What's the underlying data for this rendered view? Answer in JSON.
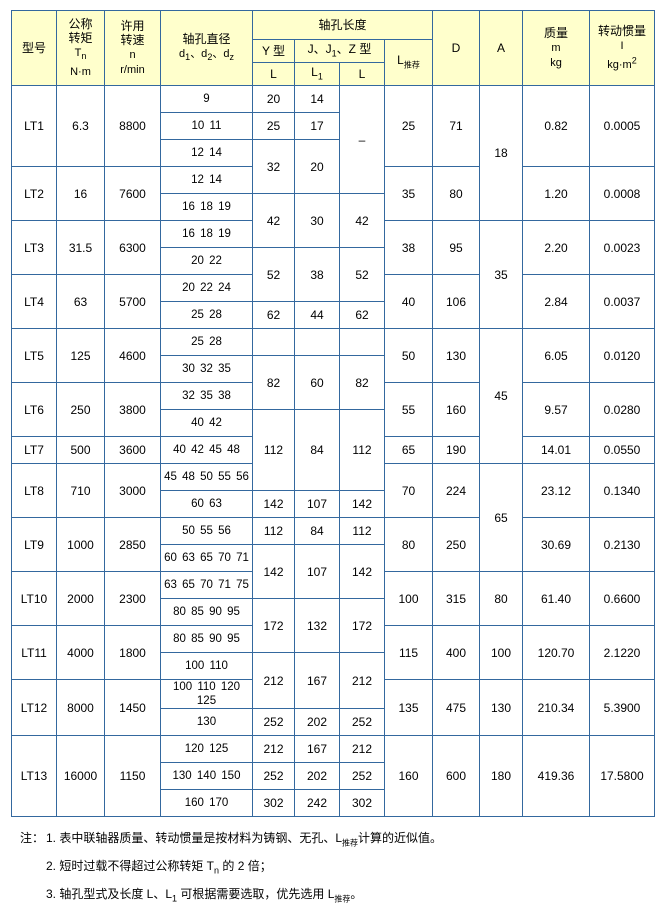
{
  "page": {
    "header_bg": "#ffffcc",
    "grid_color": "#34689e",
    "body_bg": "#ffffff",
    "text_color": "#000000"
  },
  "hdr": {
    "model": "型号",
    "tq1": "公称",
    "tq2": "转矩",
    "tq_sym": "T",
    "tq_sub": "n",
    "tq_unit": "N·m",
    "sp1": "许用",
    "sp2": "转速",
    "sp_sym": "n",
    "sp_unit": "r/min",
    "bore_title": "轴孔直径",
    "bore_d1": "d",
    "bore_s1": "1",
    "bore_d2": "、d",
    "bore_s2": "2",
    "bore_d3": "、d",
    "bore_s3": "z",
    "len_group": "轴孔长度",
    "y_type": "Y 型",
    "jz_a": "J、J",
    "jz_sub": "1",
    "jz_b": "、Z 型",
    "lrec_sym": "L",
    "lrec_sub": "推荐",
    "col_L": "L",
    "col_L1a": "L",
    "col_L1sub": "1",
    "col_L2": "L",
    "D": "D",
    "A": "A",
    "mass1": "质量",
    "mass_sym": "m",
    "mass_unit": "kg",
    "in1": "转动惯量",
    "in_sym": "I",
    "in_unit": "kg·m",
    "in_sup": "2"
  },
  "table": {
    "body": [
      [
        {
          "k": "model",
          "v": "LT1",
          "r": 3
        },
        {
          "k": "tn",
          "v": "6.3",
          "r": 3
        },
        {
          "k": "n",
          "v": "8800",
          "r": 3
        },
        {
          "k": "d",
          "v": "9"
        },
        {
          "k": "ly",
          "v": "20"
        },
        {
          "k": "l1",
          "v": "14"
        },
        {
          "k": "lz",
          "v": "–",
          "r": 4
        },
        {
          "k": "lrec",
          "v": "25",
          "r": 3
        },
        {
          "k": "D",
          "v": "71",
          "r": 3
        },
        {
          "k": "A",
          "v": "18",
          "r": 5
        },
        {
          "k": "m",
          "v": "0.82",
          "r": 3
        },
        {
          "k": "I",
          "v": "0.0005",
          "r": 3
        }
      ],
      [
        {
          "k": "d",
          "v": "10 11"
        },
        {
          "k": "ly",
          "v": "25"
        },
        {
          "k": "l1",
          "v": "17"
        }
      ],
      [
        {
          "k": "d",
          "v": "12 14"
        },
        {
          "k": "ly",
          "v": "32",
          "r": 2
        },
        {
          "k": "l1",
          "v": "20",
          "r": 2
        }
      ],
      [
        {
          "k": "model",
          "v": "LT2",
          "r": 2
        },
        {
          "k": "tn",
          "v": "16",
          "r": 2
        },
        {
          "k": "n",
          "v": "7600",
          "r": 2
        },
        {
          "k": "d",
          "v": "12 14"
        },
        {
          "k": "lrec",
          "v": "35",
          "r": 2
        },
        {
          "k": "D",
          "v": "80",
          "r": 2
        },
        {
          "k": "m",
          "v": "1.20",
          "r": 2
        },
        {
          "k": "I",
          "v": "0.0008",
          "r": 2
        }
      ],
      [
        {
          "k": "d",
          "v": "16 18 19"
        },
        {
          "k": "ly",
          "v": "42",
          "r": 2
        },
        {
          "k": "l1",
          "v": "30",
          "r": 2
        },
        {
          "k": "lz",
          "v": "42",
          "r": 2
        }
      ],
      [
        {
          "k": "model",
          "v": "LT3",
          "r": 2
        },
        {
          "k": "tn",
          "v": "31.5",
          "r": 2
        },
        {
          "k": "n",
          "v": "6300",
          "r": 2
        },
        {
          "k": "d",
          "v": "16 18 19"
        },
        {
          "k": "lrec",
          "v": "38",
          "r": 2
        },
        {
          "k": "D",
          "v": "95",
          "r": 2
        },
        {
          "k": "A",
          "v": "35",
          "r": 4
        },
        {
          "k": "m",
          "v": "2.20",
          "r": 2
        },
        {
          "k": "I",
          "v": "0.0023",
          "r": 2
        }
      ],
      [
        {
          "k": "d",
          "v": "20 22"
        },
        {
          "k": "ly",
          "v": "52",
          "r": 2
        },
        {
          "k": "l1",
          "v": "38",
          "r": 2
        },
        {
          "k": "lz",
          "v": "52",
          "r": 2
        }
      ],
      [
        {
          "k": "model",
          "v": "LT4",
          "r": 2
        },
        {
          "k": "tn",
          "v": "63",
          "r": 2
        },
        {
          "k": "n",
          "v": "5700",
          "r": 2
        },
        {
          "k": "d",
          "v": "20 22 24"
        },
        {
          "k": "lrec",
          "v": "40",
          "r": 2
        },
        {
          "k": "D",
          "v": "106",
          "r": 2
        },
        {
          "k": "m",
          "v": "2.84",
          "r": 2
        },
        {
          "k": "I",
          "v": "0.0037",
          "r": 2
        }
      ],
      [
        {
          "k": "d",
          "v": "25 28"
        },
        {
          "k": "ly",
          "v": "62"
        },
        {
          "k": "l1",
          "v": "44"
        },
        {
          "k": "lz",
          "v": "62"
        }
      ],
      [
        {
          "k": "model",
          "v": "LT5",
          "r": 2
        },
        {
          "k": "tn",
          "v": "125",
          "r": 2
        },
        {
          "k": "n",
          "v": "4600",
          "r": 2
        },
        {
          "k": "d",
          "v": "25 28"
        },
        {
          "k": "ly",
          "v": ""
        },
        {
          "k": "l1",
          "v": ""
        },
        {
          "k": "lz",
          "v": ""
        },
        {
          "k": "lrec",
          "v": "50",
          "r": 2
        },
        {
          "k": "D",
          "v": "130",
          "r": 2
        },
        {
          "k": "A",
          "v": "45",
          "r": 5
        },
        {
          "k": "m",
          "v": "6.05",
          "r": 2
        },
        {
          "k": "I",
          "v": "0.0120",
          "r": 2
        }
      ],
      [
        {
          "k": "d",
          "v": "30 32 35"
        },
        {
          "k": "ly",
          "v": "82",
          "r": 2
        },
        {
          "k": "l1",
          "v": "60",
          "r": 2
        },
        {
          "k": "lz",
          "v": "82",
          "r": 2
        }
      ],
      [
        {
          "k": "model",
          "v": "LT6",
          "r": 2
        },
        {
          "k": "tn",
          "v": "250",
          "r": 2
        },
        {
          "k": "n",
          "v": "3800",
          "r": 2
        },
        {
          "k": "d",
          "v": "32 35 38"
        },
        {
          "k": "lrec",
          "v": "55",
          "r": 2
        },
        {
          "k": "D",
          "v": "160",
          "r": 2
        },
        {
          "k": "m",
          "v": "9.57",
          "r": 2
        },
        {
          "k": "I",
          "v": "0.0280",
          "r": 2
        }
      ],
      [
        {
          "k": "d",
          "v": "40 42"
        },
        {
          "k": "ly",
          "v": "112",
          "r": 3
        },
        {
          "k": "l1",
          "v": "84",
          "r": 3
        },
        {
          "k": "lz",
          "v": "112",
          "r": 3
        }
      ],
      [
        {
          "k": "model",
          "v": "LT7"
        },
        {
          "k": "tn",
          "v": "500"
        },
        {
          "k": "n",
          "v": "3600"
        },
        {
          "k": "d",
          "v": "40 42 45 48"
        },
        {
          "k": "lrec",
          "v": "65"
        },
        {
          "k": "D",
          "v": "190"
        },
        {
          "k": "m",
          "v": "14.01"
        },
        {
          "k": "I",
          "v": "0.0550"
        }
      ],
      [
        {
          "k": "model",
          "v": "LT8",
          "r": 2
        },
        {
          "k": "tn",
          "v": "710",
          "r": 2
        },
        {
          "k": "n",
          "v": "3000",
          "r": 2
        },
        {
          "k": "d",
          "v": "45 48 50 55 56"
        },
        {
          "k": "lrec",
          "v": "70",
          "r": 2
        },
        {
          "k": "D",
          "v": "224",
          "r": 2
        },
        {
          "k": "A",
          "v": "65",
          "r": 4
        },
        {
          "k": "m",
          "v": "23.12",
          "r": 2
        },
        {
          "k": "I",
          "v": "0.1340",
          "r": 2
        }
      ],
      [
        {
          "k": "d",
          "v": "60 63"
        },
        {
          "k": "ly",
          "v": "142"
        },
        {
          "k": "l1",
          "v": "107"
        },
        {
          "k": "lz",
          "v": "142"
        }
      ],
      [
        {
          "k": "model",
          "v": "LT9",
          "r": 2
        },
        {
          "k": "tn",
          "v": "1000",
          "r": 2
        },
        {
          "k": "n",
          "v": "2850",
          "r": 2
        },
        {
          "k": "d",
          "v": "50 55 56"
        },
        {
          "k": "ly",
          "v": "112"
        },
        {
          "k": "l1",
          "v": "84"
        },
        {
          "k": "lz",
          "v": "112"
        },
        {
          "k": "lrec",
          "v": "80",
          "r": 2
        },
        {
          "k": "D",
          "v": "250",
          "r": 2
        },
        {
          "k": "m",
          "v": "30.69",
          "r": 2
        },
        {
          "k": "I",
          "v": "0.2130",
          "r": 2
        }
      ],
      [
        {
          "k": "d",
          "v": "60 63 65 70 71"
        },
        {
          "k": "ly",
          "v": "142",
          "r": 2
        },
        {
          "k": "l1",
          "v": "107",
          "r": 2
        },
        {
          "k": "lz",
          "v": "142",
          "r": 2
        }
      ],
      [
        {
          "k": "model",
          "v": "LT10",
          "r": 2
        },
        {
          "k": "tn",
          "v": "2000",
          "r": 2
        },
        {
          "k": "n",
          "v": "2300",
          "r": 2
        },
        {
          "k": "d",
          "v": "63 65 70 71 75"
        },
        {
          "k": "lrec",
          "v": "100",
          "r": 2
        },
        {
          "k": "D",
          "v": "315",
          "r": 2
        },
        {
          "k": "A",
          "v": "80",
          "r": 2
        },
        {
          "k": "m",
          "v": "61.40",
          "r": 2
        },
        {
          "k": "I",
          "v": "0.6600",
          "r": 2
        }
      ],
      [
        {
          "k": "d",
          "v": "80 85 90 95"
        },
        {
          "k": "ly",
          "v": "172",
          "r": 2
        },
        {
          "k": "l1",
          "v": "132",
          "r": 2
        },
        {
          "k": "lz",
          "v": "172",
          "r": 2
        }
      ],
      [
        {
          "k": "model",
          "v": "LT11",
          "r": 2
        },
        {
          "k": "tn",
          "v": "4000",
          "r": 2
        },
        {
          "k": "n",
          "v": "1800",
          "r": 2
        },
        {
          "k": "d",
          "v": "80 85 90 95"
        },
        {
          "k": "lrec",
          "v": "115",
          "r": 2
        },
        {
          "k": "D",
          "v": "400",
          "r": 2
        },
        {
          "k": "A",
          "v": "100",
          "r": 2
        },
        {
          "k": "m",
          "v": "120.70",
          "r": 2
        },
        {
          "k": "I",
          "v": "2.1220",
          "r": 2
        }
      ],
      [
        {
          "k": "d",
          "v": "100 110"
        },
        {
          "k": "ly",
          "v": "212",
          "r": 2
        },
        {
          "k": "l1",
          "v": "167",
          "r": 2
        },
        {
          "k": "lz",
          "v": "212",
          "r": 2
        }
      ],
      [
        {
          "k": "model",
          "v": "LT12",
          "r": 2
        },
        {
          "k": "tn",
          "v": "8000",
          "r": 2
        },
        {
          "k": "n",
          "v": "1450",
          "r": 2
        },
        {
          "k": "d",
          "v": "100 110 120\n125"
        },
        {
          "k": "lrec",
          "v": "135",
          "r": 2
        },
        {
          "k": "D",
          "v": "475",
          "r": 2
        },
        {
          "k": "A",
          "v": "130",
          "r": 2
        },
        {
          "k": "m",
          "v": "210.34",
          "r": 2
        },
        {
          "k": "I",
          "v": "5.3900",
          "r": 2
        }
      ],
      [
        {
          "k": "d",
          "v": "130"
        },
        {
          "k": "ly",
          "v": "252"
        },
        {
          "k": "l1",
          "v": "202"
        },
        {
          "k": "lz",
          "v": "252"
        }
      ],
      [
        {
          "k": "model",
          "v": "LT13",
          "r": 3
        },
        {
          "k": "tn",
          "v": "16000",
          "r": 3
        },
        {
          "k": "n",
          "v": "1150",
          "r": 3
        },
        {
          "k": "d",
          "v": "120 125"
        },
        {
          "k": "ly",
          "v": "212"
        },
        {
          "k": "l1",
          "v": "167"
        },
        {
          "k": "lz",
          "v": "212"
        },
        {
          "k": "lrec",
          "v": "160",
          "r": 3
        },
        {
          "k": "D",
          "v": "600",
          "r": 3
        },
        {
          "k": "A",
          "v": "180",
          "r": 3
        },
        {
          "k": "m",
          "v": "419.36",
          "r": 3
        },
        {
          "k": "I",
          "v": "17.5800",
          "r": 3
        }
      ],
      [
        {
          "k": "d",
          "v": "130 140 150"
        },
        {
          "k": "ly",
          "v": "252"
        },
        {
          "k": "l1",
          "v": "202"
        },
        {
          "k": "lz",
          "v": "252"
        }
      ],
      [
        {
          "k": "d",
          "v": "160 170"
        },
        {
          "k": "ly",
          "v": "302"
        },
        {
          "k": "l1",
          "v": "242"
        },
        {
          "k": "lz",
          "v": "302"
        }
      ]
    ]
  },
  "notes": {
    "items": [
      {
        "label": "注：",
        "segments": [
          {
            "t": "1. 表中联轴器质量、转动惯量是按材料为铸钢、无孔、L"
          },
          {
            "t": "推荐",
            "sub": true,
            "cn": true
          },
          {
            "t": "计算的近似值。"
          }
        ]
      },
      {
        "label": "",
        "segments": [
          {
            "t": "2. 短时过载不得超过公称转矩 T"
          },
          {
            "t": "n",
            "sub": true
          },
          {
            "t": " 的 2 倍；"
          }
        ]
      },
      {
        "label": "",
        "segments": [
          {
            "t": "3. 轴孔型式及长度 L、L"
          },
          {
            "t": "1",
            "sub": true
          },
          {
            "t": " 可根据需要选取，优先选用 L"
          },
          {
            "t": "推荐",
            "sub": true,
            "cn": true
          },
          {
            "t": "。"
          }
        ]
      }
    ]
  }
}
